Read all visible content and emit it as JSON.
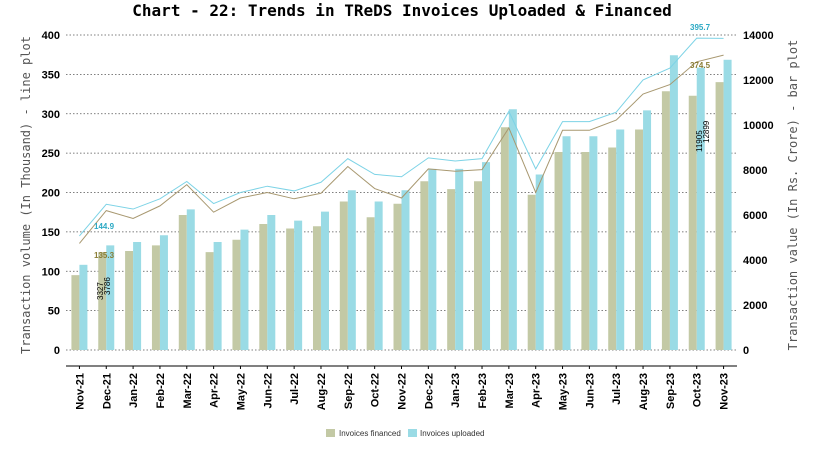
{
  "chart_data": {
    "type": "bar",
    "title": "Chart - 22: Trends in TReDS Invoices Uploaded & Financed",
    "ylabel_left": "Transaction volume (In Thousand) - line plot",
    "ylabel_right": "Transaction value (In Rs. Crore) - bar plot",
    "categories": [
      "Nov-21",
      "Dec-21",
      "Jan-22",
      "Feb-22",
      "Mar-22",
      "Apr-22",
      "May-22",
      "Jun-22",
      "Jul-22",
      "Aug-22",
      "Sep-22",
      "Oct-22",
      "Nov-22",
      "Dec-22",
      "Jan-23",
      "Feb-23",
      "Mar-23",
      "Apr-23",
      "May-23",
      "Jun-23",
      "Jul-23",
      "Aug-23",
      "Sep-23",
      "Oct-23",
      "Nov-23"
    ],
    "y_left_ticks": [
      "0",
      "50",
      "100",
      "150",
      "200",
      "250",
      "300",
      "350",
      "400"
    ],
    "y_right_ticks": [
      "0",
      "2000",
      "4000",
      "6000",
      "8000",
      "10000",
      "12000",
      "14000"
    ],
    "ylim_left": [
      0,
      400
    ],
    "ylim_right": [
      0,
      14000
    ],
    "bar_series": [
      {
        "name": "Invoices financed",
        "color": "#c3c9a5",
        "values": [
          3327,
          4350,
          4400,
          4650,
          6000,
          4350,
          4900,
          5600,
          5400,
          5500,
          6600,
          5900,
          6500,
          7500,
          7150,
          7500,
          9900,
          6900,
          8800,
          8800,
          9000,
          9800,
          11500,
          11300,
          11905
        ]
      },
      {
        "name": "Invoices uploaded",
        "color": "#9adbe5",
        "values": [
          3786,
          4650,
          4800,
          5100,
          6250,
          4800,
          5350,
          6000,
          5750,
          6150,
          7100,
          6600,
          7100,
          8050,
          8050,
          8350,
          10700,
          7800,
          9500,
          9500,
          9800,
          10650,
          13100,
          12550,
          12899
        ]
      }
    ],
    "line_series": [
      {
        "name": "Invoices financed (volume)",
        "color": "#a89870",
        "values": [
          135.3,
          177,
          167,
          183,
          210,
          175,
          193,
          200,
          192,
          199,
          233,
          205,
          193,
          230,
          227,
          229,
          282,
          200,
          279,
          279,
          292,
          325,
          337,
          366,
          374.5
        ]
      },
      {
        "name": "Invoices uploaded (volume)",
        "color": "#7dd3e6",
        "values": [
          144.9,
          185,
          179,
          192,
          214,
          186,
          200,
          208,
          202,
          213,
          243,
          223,
          220,
          244,
          240,
          243,
          303,
          230,
          290,
          290,
          302,
          343,
          358,
          396,
          395.7
        ]
      }
    ],
    "annotations": {
      "first_line_financed": "135.3",
      "first_line_uploaded": "144.9",
      "last_line_financed": "374.5",
      "last_line_uploaded": "395.7",
      "first_bar_financed": "3327",
      "first_bar_uploaded": "3786",
      "last_bar_financed": "11905",
      "last_bar_uploaded": "12899"
    },
    "legend": [
      "Invoices financed",
      "Invoices uploaded"
    ],
    "legend_position": "bottom",
    "grid": "horizontal dotted"
  }
}
